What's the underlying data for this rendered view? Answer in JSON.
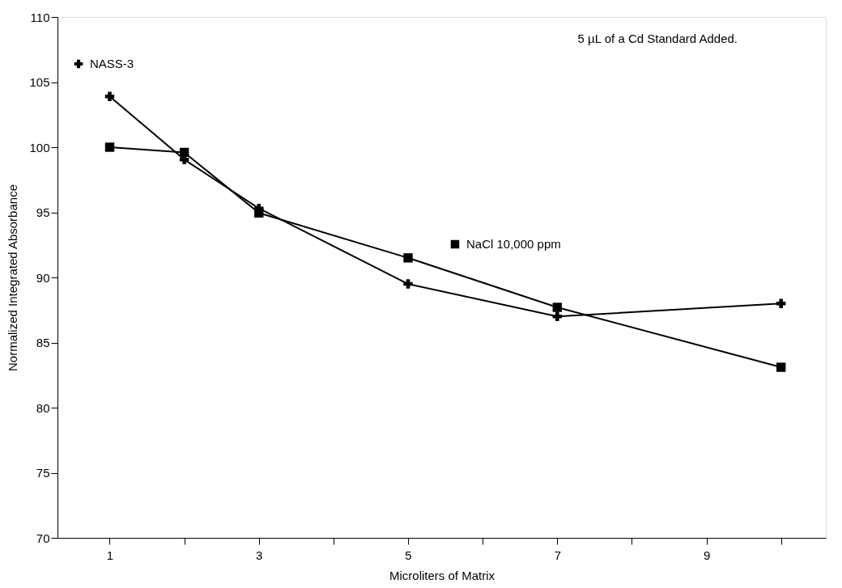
{
  "chart_data": {
    "type": "line",
    "xlabel": "Microliters of Matrix",
    "ylabel": "Normalized Integrated Absorbance",
    "annotations": [
      "5 µL of a Cd Standard Added."
    ],
    "x": [
      1,
      2,
      3,
      5,
      7,
      10
    ],
    "series": [
      {
        "name": "NASS-3",
        "color": "#000000",
        "marker": "cross",
        "values": [
          103.9,
          99.05,
          95.3,
          89.5,
          87.0,
          88.0
        ]
      },
      {
        "name": "NaCl 10,000 ppm",
        "color": "#000000",
        "marker": "square",
        "values": [
          100,
          99.6,
          94.95,
          91.5,
          87.7,
          83.1
        ]
      }
    ],
    "xlim": [
      0.3,
      10.6
    ],
    "xticks": [
      1,
      {
        "value": 2,
        "label": null
      },
      3,
      {
        "value": 4,
        "label": null
      },
      5,
      {
        "value": 6,
        "label": null
      },
      7,
      {
        "value": 8,
        "label": null
      },
      9,
      {
        "value": 10,
        "label": null
      }
    ],
    "ylim": [
      70,
      110
    ],
    "yticks": [
      70,
      75,
      80,
      85,
      90,
      95,
      100,
      105,
      110
    ],
    "grid": false,
    "legend": "top left",
    "line_style": "solid"
  }
}
